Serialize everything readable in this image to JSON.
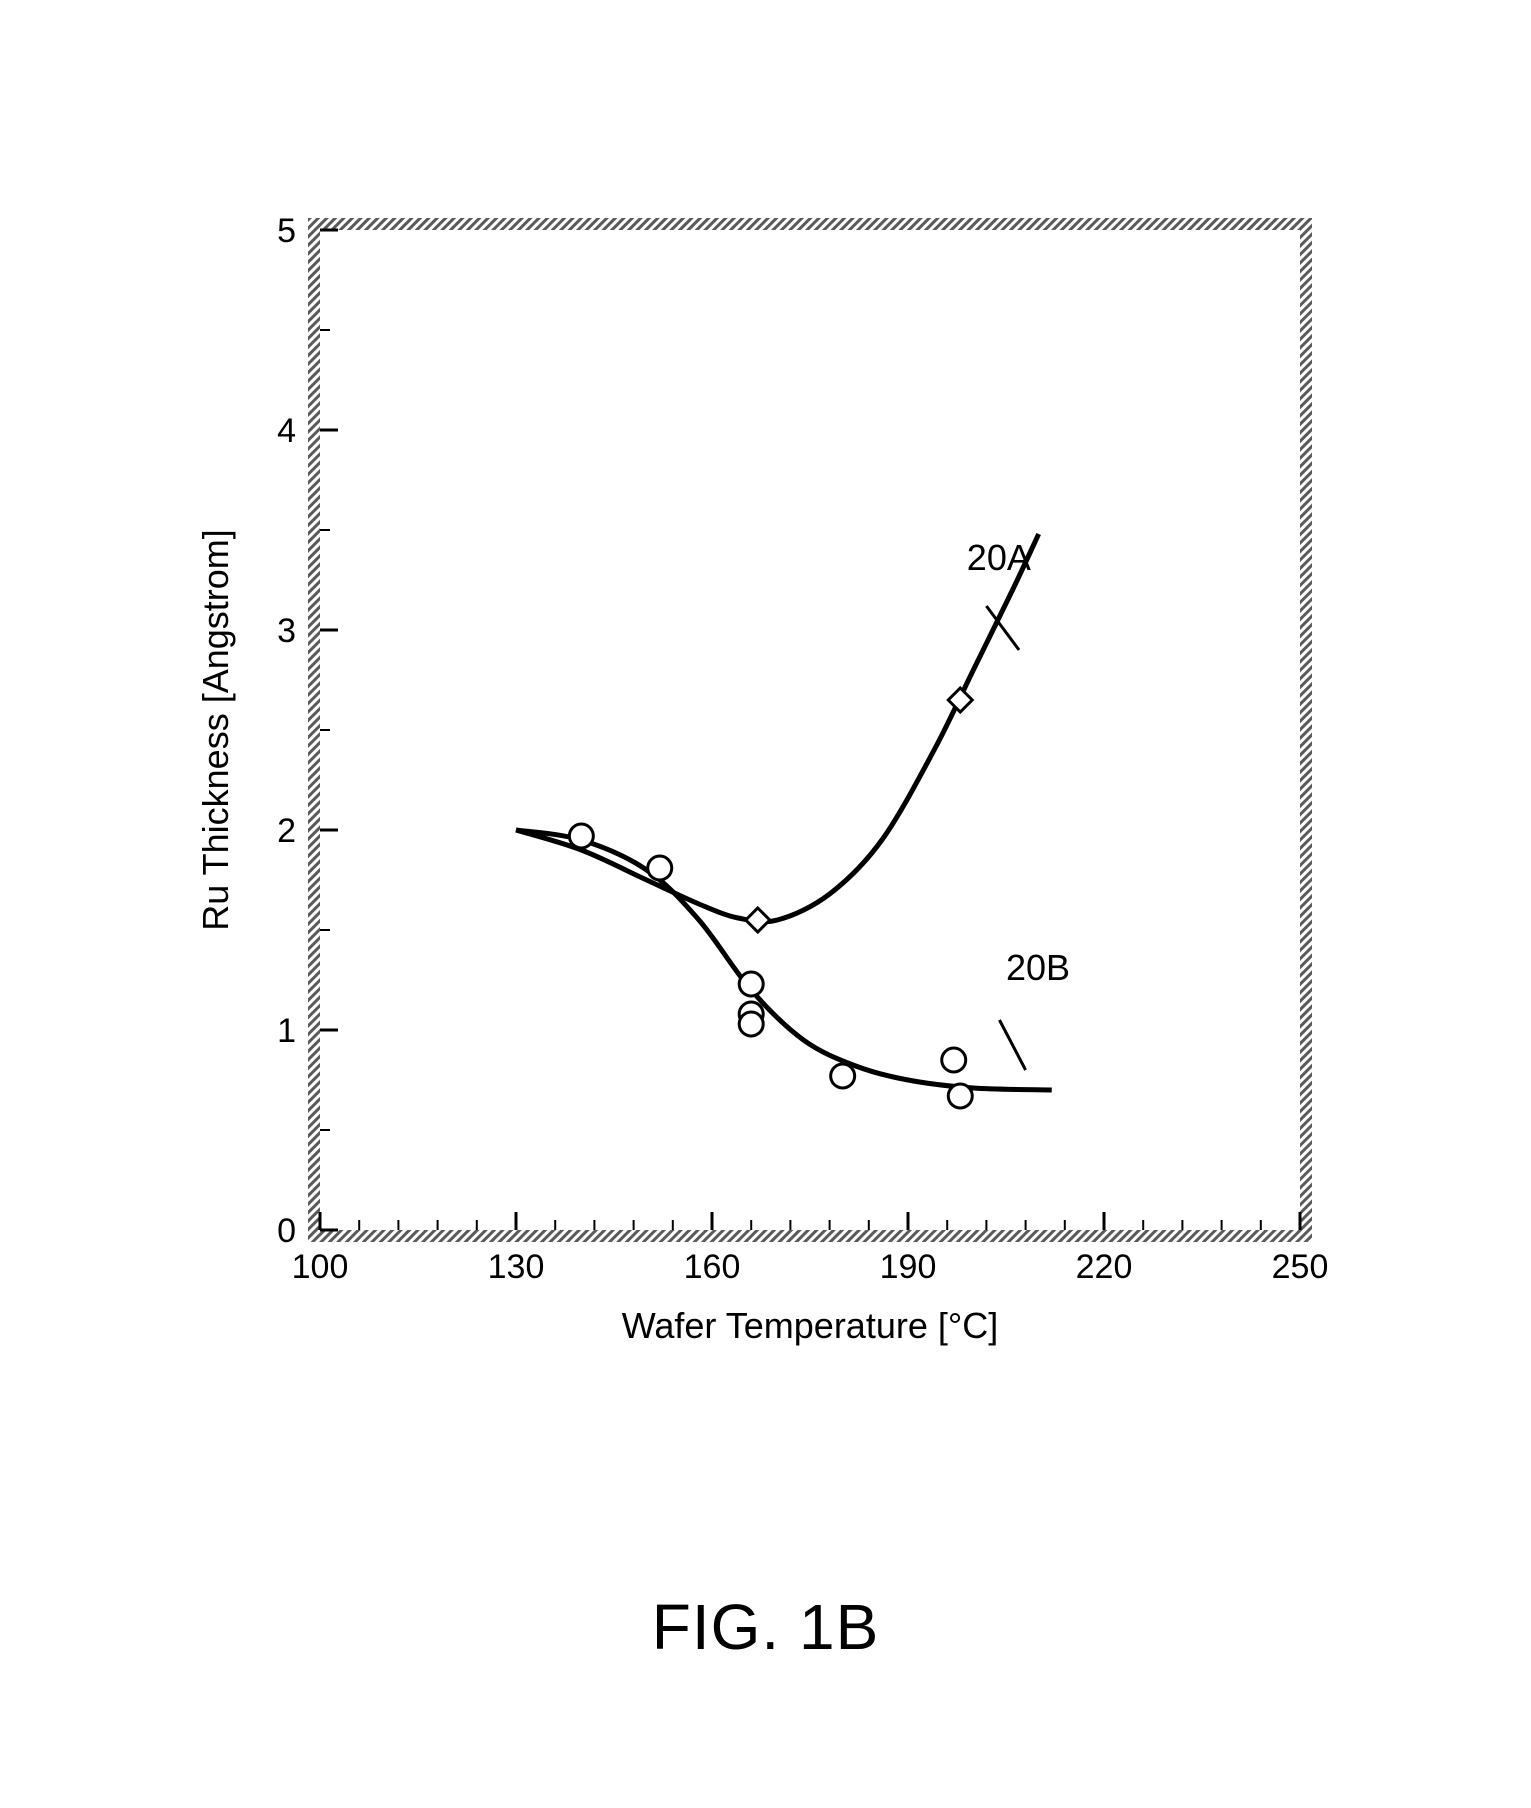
{
  "figure_label": "FIG. 1B",
  "chart": {
    "type": "scatter-line",
    "xlabel": "Wafer Temperature [°C]",
    "ylabel": "Ru Thickness [Angstrom]",
    "label_fontsize": 36,
    "tick_fontsize": 34,
    "xlim": [
      100,
      250
    ],
    "ylim": [
      0,
      5
    ],
    "xticks": [
      100,
      130,
      160,
      190,
      220,
      250
    ],
    "yticks": [
      0,
      1,
      2,
      3,
      4,
      5
    ],
    "background_color": "#ffffff",
    "plot_border_pattern_color": "#5a5a5a",
    "plot_border_width": 12,
    "tick_length_major": 18,
    "tick_length_minor": 10,
    "x_minor_ticks": [
      106,
      112,
      118,
      124,
      136,
      142,
      148,
      154,
      166,
      172,
      178,
      184,
      196,
      202,
      208,
      214,
      226,
      232,
      238,
      244
    ],
    "y_minor_ticks": [
      0.5,
      1.5,
      2.5,
      3.5,
      4.5
    ],
    "series": {
      "A": {
        "label": "20A",
        "label_pos": {
          "x": 199,
          "y": 3.3
        },
        "leader": {
          "from": {
            "x": 202,
            "y": 3.12
          },
          "to": {
            "x": 207,
            "y": 2.9
          }
        },
        "marker": "diamond",
        "marker_size": 24,
        "marker_stroke": "#000000",
        "marker_fill": "#ffffff",
        "line_color": "#000000",
        "line_width": 5,
        "points": [
          {
            "x": 167,
            "y": 1.55
          },
          {
            "x": 198,
            "y": 2.65
          }
        ],
        "curve": [
          {
            "x": 130,
            "y": 2.0
          },
          {
            "x": 140,
            "y": 1.9
          },
          {
            "x": 150,
            "y": 1.75
          },
          {
            "x": 158,
            "y": 1.63
          },
          {
            "x": 164,
            "y": 1.56
          },
          {
            "x": 170,
            "y": 1.55
          },
          {
            "x": 178,
            "y": 1.68
          },
          {
            "x": 186,
            "y": 1.95
          },
          {
            "x": 194,
            "y": 2.4
          },
          {
            "x": 200,
            "y": 2.8
          },
          {
            "x": 206,
            "y": 3.2
          },
          {
            "x": 210,
            "y": 3.48
          }
        ]
      },
      "B": {
        "label": "20B",
        "label_pos": {
          "x": 205,
          "y": 1.25
        },
        "leader": {
          "from": {
            "x": 204,
            "y": 1.05
          },
          "to": {
            "x": 208,
            "y": 0.8
          }
        },
        "marker": "circle",
        "marker_size": 24,
        "marker_stroke": "#000000",
        "marker_fill": "#ffffff",
        "line_color": "#000000",
        "line_width": 5,
        "points": [
          {
            "x": 140,
            "y": 1.97
          },
          {
            "x": 152,
            "y": 1.81
          },
          {
            "x": 166,
            "y": 1.23
          },
          {
            "x": 166,
            "y": 1.08
          },
          {
            "x": 166,
            "y": 1.03
          },
          {
            "x": 180,
            "y": 0.77
          },
          {
            "x": 197,
            "y": 0.85
          },
          {
            "x": 198,
            "y": 0.67
          }
        ],
        "curve": [
          {
            "x": 130,
            "y": 2.0
          },
          {
            "x": 140,
            "y": 1.95
          },
          {
            "x": 150,
            "y": 1.8
          },
          {
            "x": 158,
            "y": 1.55
          },
          {
            "x": 166,
            "y": 1.2
          },
          {
            "x": 174,
            "y": 0.95
          },
          {
            "x": 182,
            "y": 0.82
          },
          {
            "x": 190,
            "y": 0.75
          },
          {
            "x": 200,
            "y": 0.71
          },
          {
            "x": 212,
            "y": 0.7
          }
        ]
      }
    }
  }
}
